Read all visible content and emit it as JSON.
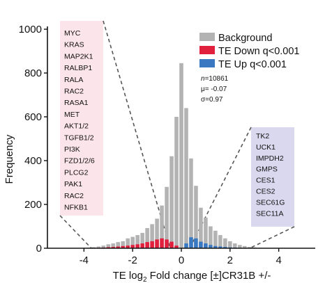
{
  "chart_data": {
    "type": "bar",
    "xlabel_prefix": "TE log",
    "xlabel_sub": "2",
    "xlabel_suffix": " Fold change [±]CR31B +/-",
    "ylabel": "Frequency",
    "xlim": [
      -5.5,
      5.5
    ],
    "ylim": [
      0,
      1000
    ],
    "xticks": [
      -4,
      -2,
      0,
      2,
      4
    ],
    "xtick_labels": [
      "-4",
      "-2",
      "0",
      "2",
      "4"
    ],
    "yticks": [
      0,
      200,
      400,
      600,
      800,
      1000
    ],
    "ytick_labels": [
      "0",
      "200",
      "400",
      "600",
      "800",
      "1000"
    ],
    "bin_width": 0.2,
    "bins": [
      {
        "x": -4.0,
        "background": 2,
        "down": 0,
        "up": 0
      },
      {
        "x": -3.8,
        "background": 3,
        "down": 0,
        "up": 0
      },
      {
        "x": -3.6,
        "background": 5,
        "down": 1,
        "up": 0
      },
      {
        "x": -3.4,
        "background": 8,
        "down": 2,
        "up": 0
      },
      {
        "x": -3.2,
        "background": 12,
        "down": 3,
        "up": 0
      },
      {
        "x": -3.0,
        "background": 18,
        "down": 5,
        "up": 0
      },
      {
        "x": -2.8,
        "background": 22,
        "down": 6,
        "up": 0
      },
      {
        "x": -2.6,
        "background": 28,
        "down": 8,
        "up": 0
      },
      {
        "x": -2.4,
        "background": 32,
        "down": 10,
        "up": 0
      },
      {
        "x": -2.2,
        "background": 45,
        "down": 12,
        "up": 0
      },
      {
        "x": -2.0,
        "background": 52,
        "down": 15,
        "up": 0
      },
      {
        "x": -1.8,
        "background": 60,
        "down": 18,
        "up": 0
      },
      {
        "x": -1.6,
        "background": 70,
        "down": 22,
        "up": 0
      },
      {
        "x": -1.4,
        "background": 92,
        "down": 28,
        "up": 0
      },
      {
        "x": -1.2,
        "background": 110,
        "down": 32,
        "up": 0
      },
      {
        "x": -1.0,
        "background": 135,
        "down": 40,
        "up": 0
      },
      {
        "x": -0.8,
        "background": 195,
        "down": 45,
        "up": 0
      },
      {
        "x": -0.6,
        "background": 280,
        "down": 40,
        "up": 0
      },
      {
        "x": -0.4,
        "background": 420,
        "down": 30,
        "up": 0
      },
      {
        "x": -0.2,
        "background": 600,
        "down": 12,
        "up": 0
      },
      {
        "x": 0.0,
        "background": 845,
        "down": 0,
        "up": 0
      },
      {
        "x": 0.2,
        "background": 640,
        "down": 0,
        "up": 22
      },
      {
        "x": 0.4,
        "background": 410,
        "down": 0,
        "up": 50
      },
      {
        "x": 0.6,
        "background": 285,
        "down": 0,
        "up": 45
      },
      {
        "x": 0.8,
        "background": 185,
        "down": 0,
        "up": 30
      },
      {
        "x": 1.0,
        "background": 140,
        "down": 0,
        "up": 22
      },
      {
        "x": 1.2,
        "background": 100,
        "down": 0,
        "up": 15
      },
      {
        "x": 1.4,
        "background": 80,
        "down": 0,
        "up": 10
      },
      {
        "x": 1.6,
        "background": 60,
        "down": 0,
        "up": 8
      },
      {
        "x": 1.8,
        "background": 45,
        "down": 0,
        "up": 6
      },
      {
        "x": 2.0,
        "background": 32,
        "down": 0,
        "up": 4
      },
      {
        "x": 2.2,
        "background": 22,
        "down": 0,
        "up": 3
      },
      {
        "x": 2.4,
        "background": 15,
        "down": 0,
        "up": 2
      },
      {
        "x": 2.6,
        "background": 10,
        "down": 0,
        "up": 1
      },
      {
        "x": 2.8,
        "background": 6,
        "down": 0,
        "up": 0
      },
      {
        "x": 3.0,
        "background": 4,
        "down": 0,
        "up": 0
      },
      {
        "x": 3.2,
        "background": 2,
        "down": 0,
        "up": 0
      }
    ],
    "legend": {
      "placement": "top-right",
      "items": [
        {
          "label": "Background",
          "color": "#b3b3b3"
        },
        {
          "label": "TE Down q<0.001",
          "color": "#e0203c"
        },
        {
          "label": "TE Up q<0.001",
          "color": "#3a78c2"
        }
      ]
    },
    "stats": {
      "n_prefix": "n",
      "n_value": "=10861",
      "mu": "μ= -0.07",
      "sigma": "σ=0.97"
    },
    "gene_boxes": {
      "down": {
        "fill": "#fbe4ea",
        "genes": [
          "MYC",
          "KRAS",
          "MAP2K1",
          "RALBP1",
          "RALA",
          "RAC2",
          "RASA1",
          "MET",
          "AKT1/2",
          "TGFB1/2",
          "PI3K",
          "FZD1/2/6",
          "PLCG2",
          "PAK1",
          "RAC2",
          "NFKB1"
        ]
      },
      "up": {
        "fill": "#d9d8ee",
        "genes": [
          "TK2",
          "UCK1",
          "IMPDH2",
          "GMPS",
          "CES1",
          "CES2",
          "SEC61G",
          "SEC11A"
        ]
      }
    },
    "colors": {
      "background": "#b3b3b3",
      "down": "#e0203c",
      "up": "#3a78c2",
      "axis": "#111111",
      "callout_line": "#555555"
    }
  }
}
